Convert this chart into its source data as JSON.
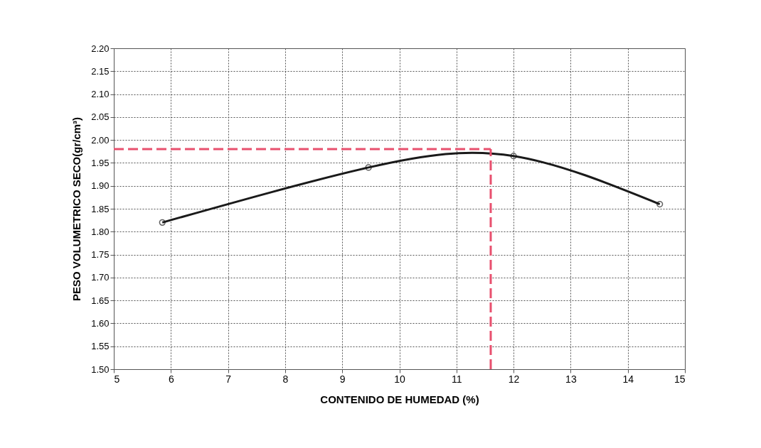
{
  "chart_data": {
    "type": "line",
    "xlabel": "CONTENIDO DE HUMEDAD (%)",
    "ylabel": "PESO VOLUMETRICO SECO(gr/cm³)",
    "x": [
      5.85,
      9.46,
      12.0,
      14.56
    ],
    "series": [
      {
        "color": "#1a1a1a",
        "values": [
          1.82,
          1.94,
          1.965,
          1.86
        ]
      }
    ],
    "xlim": [
      5,
      15
    ],
    "xticks": [
      5,
      6,
      7,
      8,
      9,
      10,
      11,
      12,
      13,
      14,
      15
    ],
    "ylim": [
      1.5,
      2.2
    ],
    "yticks": [
      {
        "value": 1.5,
        "label": "1.50"
      },
      {
        "value": 1.55,
        "label": "1.55"
      },
      {
        "value": 1.6,
        "label": "1.60"
      },
      {
        "value": 1.65,
        "label": "1.65"
      },
      {
        "value": 1.7,
        "label": "1.70"
      },
      {
        "value": 1.75,
        "label": "1.75"
      },
      {
        "value": 1.8,
        "label": "1.80"
      },
      {
        "value": 1.85,
        "label": "1.85"
      },
      {
        "value": 1.9,
        "label": "1.90"
      },
      {
        "value": 1.95,
        "label": "1.95"
      },
      {
        "value": 2.0,
        "label": "2.00"
      },
      {
        "value": 2.05,
        "label": "2.05"
      },
      {
        "value": 2.1,
        "label": "2.10"
      },
      {
        "value": 2.15,
        "label": "2.15"
      },
      {
        "value": 2.2,
        "label": "2.20"
      }
    ],
    "ref_lines": [
      {
        "axis": "y",
        "value": 1.98,
        "color": "#e8506e",
        "line_style": "dashed"
      },
      {
        "axis": "x",
        "value": 11.6,
        "color": "#e8506e",
        "line_style": "dashed"
      }
    ],
    "grid": true,
    "marker": "circle",
    "line_style": "solid"
  }
}
